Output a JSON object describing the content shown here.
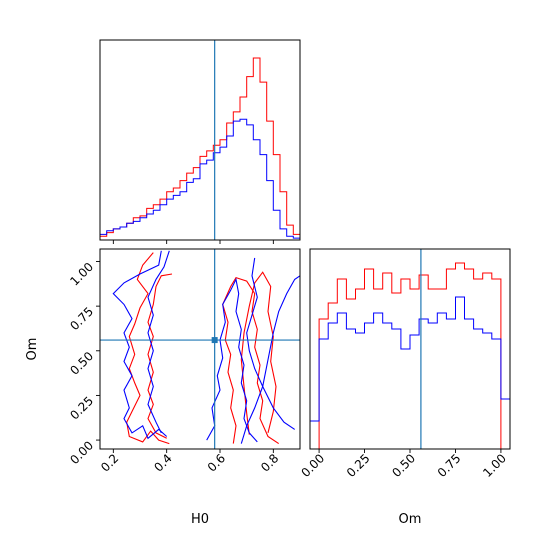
{
  "chart_data": [
    {
      "type": "histogram",
      "panel": "H0 marginal",
      "xlim": [
        0.15,
        0.9
      ],
      "bin_edges": [
        0.15,
        0.175,
        0.2,
        0.225,
        0.25,
        0.275,
        0.3,
        0.325,
        0.35,
        0.375,
        0.4,
        0.425,
        0.45,
        0.475,
        0.5,
        0.525,
        0.55,
        0.575,
        0.6,
        0.625,
        0.65,
        0.675,
        0.7,
        0.725,
        0.75,
        0.775,
        0.8,
        0.825,
        0.85,
        0.875,
        0.9
      ],
      "series": [
        {
          "color": "#ff0000",
          "values": [
            0.2,
            0.4,
            0.6,
            0.7,
            0.9,
            1.2,
            1.3,
            1.7,
            1.9,
            2.2,
            2.6,
            2.8,
            3.2,
            3.6,
            3.9,
            4.5,
            4.8,
            5.1,
            5.4,
            6.3,
            6.9,
            7.7,
            8.8,
            9.8,
            8.5,
            6.4,
            4.6,
            2.6,
            0.8,
            0.3
          ]
        },
        {
          "color": "#0000ff",
          "values": [
            0.3,
            0.5,
            0.6,
            0.7,
            0.9,
            1.0,
            1.2,
            1.4,
            1.6,
            1.9,
            2.2,
            2.4,
            2.6,
            3.1,
            3.3,
            4.1,
            4.3,
            4.7,
            5.0,
            5.6,
            6.4,
            6.5,
            6.2,
            5.4,
            4.6,
            3.2,
            1.6,
            0.6,
            0.2,
            0.1
          ]
        }
      ],
      "truth_line": 0.58
    },
    {
      "type": "contour",
      "panel": "H0 vs Om",
      "xlabel": "H0",
      "ylabel": "Om",
      "xlim": [
        0.15,
        0.9
      ],
      "ylim": [
        -0.05,
        1.07
      ],
      "x_ticks": [
        "0.2",
        "0.4",
        "0.6",
        "0.8"
      ],
      "y_ticks": [
        "0.00",
        "0.25",
        "0.50",
        "0.75",
        "1.00"
      ],
      "x_tick_values": [
        0.2,
        0.4,
        0.6,
        0.8
      ],
      "y_tick_values": [
        0.0,
        0.25,
        0.5,
        0.75,
        1.0
      ],
      "truth_point": [
        0.58,
        0.56
      ],
      "contours": [
        {
          "color": "#ff0000",
          "points": [
            [
              0.35,
              1.05
            ],
            [
              0.31,
              0.98
            ],
            [
              0.29,
              0.9
            ],
            [
              0.33,
              0.82
            ],
            [
              0.3,
              0.74
            ],
            [
              0.28,
              0.65
            ],
            [
              0.26,
              0.58
            ],
            [
              0.28,
              0.48
            ],
            [
              0.26,
              0.4
            ],
            [
              0.28,
              0.32
            ],
            [
              0.3,
              0.25
            ],
            [
              0.27,
              0.16
            ],
            [
              0.25,
              0.1
            ],
            [
              0.26,
              0.02
            ],
            [
              0.31,
              -0.01
            ],
            [
              0.34,
              0.05
            ],
            [
              0.37,
              0.0
            ],
            [
              0.41,
              -0.02
            ]
          ]
        },
        {
          "color": "#ff0000",
          "points": [
            [
              0.42,
              0.93
            ],
            [
              0.38,
              0.92
            ],
            [
              0.36,
              0.86
            ],
            [
              0.35,
              0.76
            ],
            [
              0.33,
              0.66
            ],
            [
              0.35,
              0.58
            ],
            [
              0.33,
              0.48
            ],
            [
              0.35,
              0.38
            ],
            [
              0.33,
              0.28
            ],
            [
              0.35,
              0.2
            ],
            [
              0.33,
              0.12
            ],
            [
              0.36,
              0.04
            ],
            [
              0.4,
              0.01
            ]
          ]
        },
        {
          "color": "#ff0000",
          "points": [
            [
              0.65,
              -0.02
            ],
            [
              0.66,
              0.08
            ],
            [
              0.64,
              0.18
            ],
            [
              0.65,
              0.28
            ],
            [
              0.63,
              0.38
            ],
            [
              0.64,
              0.48
            ],
            [
              0.62,
              0.56
            ],
            [
              0.63,
              0.66
            ],
            [
              0.61,
              0.76
            ],
            [
              0.64,
              0.86
            ],
            [
              0.66,
              0.91
            ],
            [
              0.7,
              0.89
            ],
            [
              0.73,
              0.82
            ],
            [
              0.72,
              0.72
            ],
            [
              0.74,
              0.62
            ],
            [
              0.73,
              0.52
            ],
            [
              0.75,
              0.42
            ],
            [
              0.74,
              0.32
            ],
            [
              0.76,
              0.22
            ],
            [
              0.75,
              0.12
            ],
            [
              0.78,
              0.02
            ],
            [
              0.82,
              -0.02
            ]
          ]
        },
        {
          "color": "#ff0000",
          "points": [
            [
              0.71,
              0.03
            ],
            [
              0.7,
              0.15
            ],
            [
              0.69,
              0.3
            ],
            [
              0.68,
              0.45
            ],
            [
              0.69,
              0.6
            ],
            [
              0.71,
              0.75
            ],
            [
              0.73,
              0.88
            ],
            [
              0.76,
              0.94
            ],
            [
              0.79,
              0.86
            ],
            [
              0.78,
              0.72
            ],
            [
              0.8,
              0.58
            ],
            [
              0.79,
              0.44
            ],
            [
              0.81,
              0.3
            ],
            [
              0.8,
              0.16
            ],
            [
              0.78,
              0.04
            ]
          ]
        },
        {
          "color": "#0000ff",
          "points": [
            [
              0.38,
              1.06
            ],
            [
              0.37,
              0.98
            ],
            [
              0.3,
              0.93
            ],
            [
              0.24,
              0.88
            ],
            [
              0.2,
              0.82
            ],
            [
              0.24,
              0.76
            ],
            [
              0.27,
              0.68
            ],
            [
              0.24,
              0.6
            ],
            [
              0.26,
              0.52
            ],
            [
              0.24,
              0.44
            ],
            [
              0.27,
              0.36
            ],
            [
              0.24,
              0.28
            ],
            [
              0.26,
              0.18
            ],
            [
              0.24,
              0.12
            ],
            [
              0.27,
              0.04
            ],
            [
              0.31,
              0.08
            ],
            [
              0.33,
              0.01
            ],
            [
              0.37,
              0.06
            ],
            [
              0.4,
              0.02
            ]
          ]
        },
        {
          "color": "#0000ff",
          "points": [
            [
              0.41,
              1.06
            ],
            [
              0.39,
              0.97
            ],
            [
              0.36,
              0.9
            ],
            [
              0.33,
              0.8
            ],
            [
              0.35,
              0.7
            ],
            [
              0.33,
              0.6
            ],
            [
              0.35,
              0.5
            ],
            [
              0.33,
              0.4
            ],
            [
              0.35,
              0.3
            ],
            [
              0.33,
              0.2
            ],
            [
              0.36,
              0.1
            ],
            [
              0.38,
              0.04
            ]
          ]
        },
        {
          "color": "#0000ff",
          "points": [
            [
              0.55,
              0.0
            ],
            [
              0.58,
              0.08
            ],
            [
              0.57,
              0.18
            ],
            [
              0.6,
              0.28
            ],
            [
              0.59,
              0.36
            ],
            [
              0.61,
              0.46
            ],
            [
              0.6,
              0.56
            ],
            [
              0.62,
              0.66
            ],
            [
              0.61,
              0.76
            ],
            [
              0.64,
              0.84
            ],
            [
              0.66,
              0.9
            ],
            [
              0.67,
              0.82
            ],
            [
              0.66,
              0.72
            ],
            [
              0.68,
              0.62
            ],
            [
              0.67,
              0.52
            ],
            [
              0.69,
              0.42
            ],
            [
              0.68,
              0.32
            ],
            [
              0.7,
              0.22
            ],
            [
              0.69,
              0.12
            ],
            [
              0.71,
              0.04
            ],
            [
              0.74,
              -0.01
            ]
          ]
        },
        {
          "color": "#0000ff",
          "points": [
            [
              0.68,
              -0.02
            ],
            [
              0.7,
              0.08
            ],
            [
              0.73,
              0.18
            ],
            [
              0.76,
              0.3
            ],
            [
              0.78,
              0.45
            ],
            [
              0.8,
              0.6
            ],
            [
              0.82,
              0.72
            ],
            [
              0.85,
              0.82
            ],
            [
              0.88,
              0.9
            ],
            [
              0.9,
              0.92
            ]
          ]
        },
        {
          "color": "#0000ff",
          "points": [
            [
              0.73,
              1.02
            ],
            [
              0.72,
              0.92
            ],
            [
              0.74,
              0.8
            ],
            [
              0.72,
              0.7
            ],
            [
              0.7,
              0.6
            ],
            [
              0.71,
              0.5
            ],
            [
              0.73,
              0.4
            ],
            [
              0.76,
              0.3
            ],
            [
              0.8,
              0.18
            ],
            [
              0.84,
              0.1
            ],
            [
              0.88,
              0.06
            ]
          ]
        }
      ]
    },
    {
      "type": "histogram",
      "panel": "Om marginal",
      "xlabel": "Om",
      "xlim": [
        -0.05,
        1.05
      ],
      "x_ticks": [
        "0.00",
        "0.25",
        "0.50",
        "0.75",
        "1.00"
      ],
      "x_tick_values": [
        0.0,
        0.25,
        0.5,
        0.75,
        1.0
      ],
      "bin_edges": [
        -0.05,
        0.0,
        0.05,
        0.1,
        0.15,
        0.2,
        0.25,
        0.3,
        0.35,
        0.4,
        0.45,
        0.5,
        0.55,
        0.6,
        0.65,
        0.7,
        0.75,
        0.8,
        0.85,
        0.9,
        0.95,
        1.0,
        1.05
      ],
      "series": [
        {
          "color": "#ff0000",
          "values": [
            0.0,
            6.5,
            7.3,
            8.5,
            7.5,
            8.0,
            9.0,
            8.0,
            8.8,
            7.8,
            8.5,
            8.0,
            8.7,
            8.0,
            8.0,
            9.0,
            9.3,
            9.0,
            8.5,
            8.8,
            8.5,
            0.0
          ]
        },
        {
          "color": "#0000ff",
          "values": [
            1.4,
            5.5,
            6.3,
            6.8,
            6.0,
            5.8,
            6.3,
            6.8,
            6.3,
            6.0,
            5.0,
            5.7,
            6.5,
            6.3,
            6.8,
            6.5,
            7.6,
            6.5,
            6.0,
            5.8,
            5.5,
            2.5
          ]
        }
      ],
      "truth_line": 0.56
    }
  ]
}
